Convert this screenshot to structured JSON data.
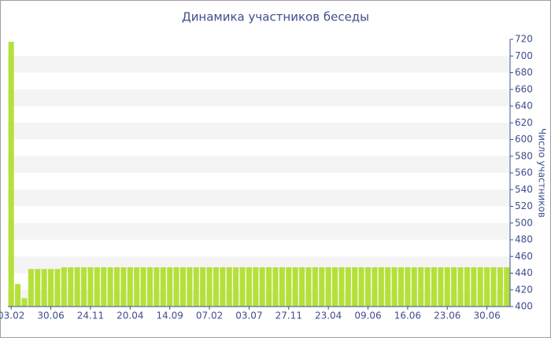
{
  "chart_data": {
    "type": "bar",
    "title": "Динамика участников беседы",
    "y_label": "Число участников",
    "categories": [
      "03.02",
      null,
      null,
      null,
      null,
      null,
      "30.06",
      null,
      null,
      null,
      null,
      null,
      "24.11",
      null,
      null,
      null,
      null,
      null,
      "20.04",
      null,
      null,
      null,
      null,
      null,
      "14.09",
      null,
      null,
      null,
      null,
      null,
      "07.02",
      null,
      null,
      null,
      null,
      null,
      "03.07",
      null,
      null,
      null,
      null,
      null,
      "27.11",
      null,
      null,
      null,
      null,
      null,
      "23.04",
      null,
      null,
      null,
      null,
      null,
      "09.06",
      null,
      null,
      null,
      null,
      null,
      "16.06",
      null,
      null,
      null,
      null,
      null,
      "23.06",
      null,
      null,
      null,
      null,
      null,
      "30.06",
      null,
      null,
      null
    ],
    "values": [
      717,
      427,
      410,
      445,
      445,
      445,
      445,
      445,
      447,
      447,
      447,
      447,
      447,
      447,
      447,
      447,
      447,
      447,
      447,
      447,
      447,
      447,
      447,
      447,
      447,
      447,
      447,
      447,
      447,
      447,
      447,
      447,
      447,
      447,
      447,
      447,
      447,
      447,
      447,
      447,
      447,
      447,
      447,
      447,
      447,
      447,
      447,
      447,
      447,
      447,
      447,
      447,
      447,
      447,
      447,
      447,
      447,
      447,
      447,
      447,
      447,
      447,
      447,
      447,
      447,
      447,
      447,
      447,
      447,
      447,
      447,
      447,
      447,
      447,
      447,
      447
    ],
    "color": "#b5e03a",
    "ylim": [
      400,
      720
    ],
    "yticks": [
      400,
      420,
      440,
      460,
      480,
      500,
      520,
      540,
      560,
      580,
      600,
      620,
      640,
      660,
      680,
      700,
      720
    ],
    "grid": true
  }
}
